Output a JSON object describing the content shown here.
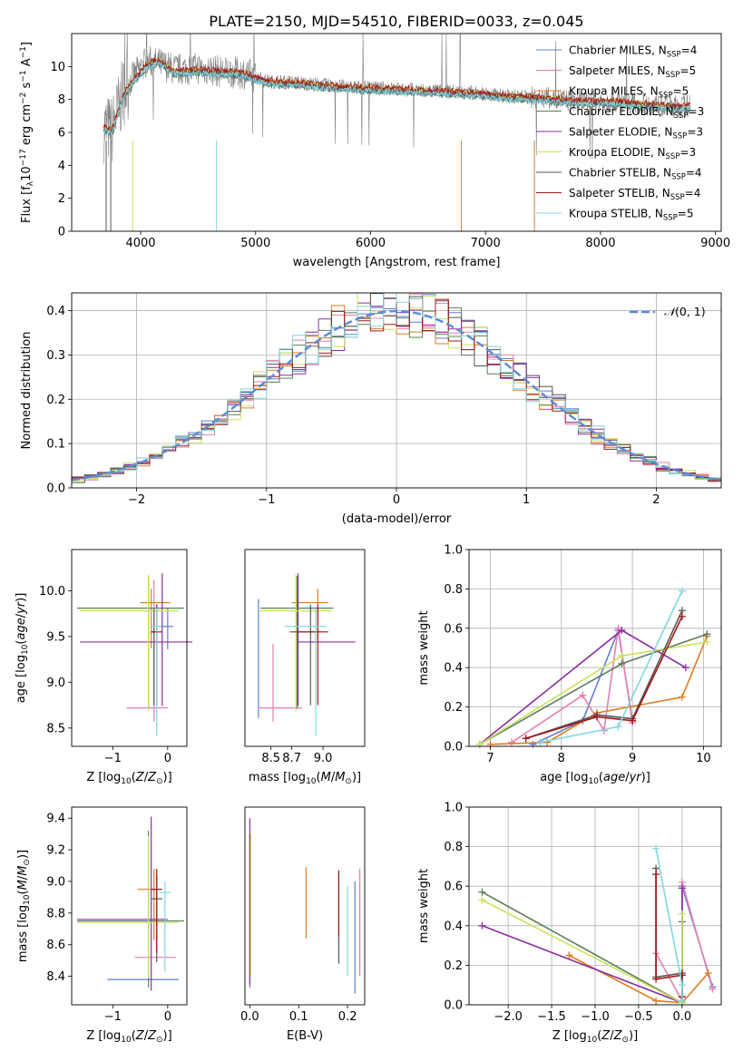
{
  "figure_title": "PLATE=2150, MJD=54510, FIBERID=0033, z=0.045",
  "colors": {
    "Chabrier MILES": "#5b7fd0",
    "Salpeter MILES": "#e57fb0",
    "Kroupa MILES": "#e07b20",
    "Chabrier ELODIE": "#5a7d5a",
    "Salpeter ELODIE": "#8b2ea0",
    "Kroupa ELODIE": "#c9e35a",
    "Chabrier STELIB": "#555555",
    "Salpeter STELIB": "#a01818",
    "Kroupa STELIB": "#80d8e0"
  },
  "chart_data": [
    {
      "type": "line",
      "panel": "spectrum",
      "xlabel": "wavelength [Angstrom, rest frame]",
      "ylabel": "Flux [f_λ10^-17 erg cm^-2 s^-1 A^-1]",
      "xlim": [
        3400,
        9050
      ],
      "ylim": [
        0,
        12
      ],
      "xticks": [
        4000,
        5000,
        6000,
        7000,
        8000,
        9000
      ],
      "yticks": [
        0,
        2,
        4,
        6,
        8,
        10
      ],
      "grid": false,
      "legend": "top-right",
      "legend_entries": [
        {
          "label": "Chabrier MILES",
          "nssp": "4"
        },
        {
          "label": "Salpeter MILES",
          "nssp": "5"
        },
        {
          "label": "Kroupa MILES",
          "nssp": "5"
        },
        {
          "label": "Chabrier ELODIE",
          "nssp": "3"
        },
        {
          "label": "Salpeter ELODIE",
          "nssp": "3"
        },
        {
          "label": "Kroupa ELODIE",
          "nssp": "3"
        },
        {
          "label": "Chabrier STELIB",
          "nssp": "4"
        },
        {
          "label": "Salpeter STELIB",
          "nssp": "4"
        },
        {
          "label": "Kroupa STELIB",
          "nssp": "5"
        }
      ],
      "data_trend": {
        "x": [
          3680,
          3750,
          3850,
          3950,
          4050,
          4150,
          4300,
          4500,
          4700,
          4900,
          5100,
          5400,
          5700,
          6000,
          6300,
          6600,
          6900,
          7200,
          7500,
          7800,
          8100,
          8400,
          8700
        ],
        "y": [
          6.3,
          6.1,
          8.5,
          9.5,
          10.3,
          10.2,
          9.8,
          9.9,
          9.7,
          9.6,
          9.1,
          9.0,
          8.8,
          8.7,
          8.6,
          8.5,
          8.4,
          8.2,
          8.1,
          7.9,
          7.9,
          7.7,
          7.6
        ]
      },
      "model_trend": {
        "x": [
          3680,
          3750,
          3850,
          3950,
          4050,
          4150,
          4300,
          4500,
          4700,
          4900,
          5100,
          5400,
          5700,
          6000,
          6300,
          6600,
          6900,
          7200,
          7500,
          7800,
          8100,
          8400,
          8700
        ],
        "y": [
          6.2,
          6.0,
          8.2,
          9.2,
          10.0,
          10.3,
          9.6,
          9.7,
          9.6,
          9.5,
          9.0,
          8.9,
          8.7,
          8.6,
          8.5,
          8.4,
          8.3,
          8.1,
          8.0,
          7.8,
          7.8,
          7.6,
          7.5
        ]
      }
    },
    {
      "type": "line",
      "panel": "residuals",
      "xlabel": "(data-model)/error",
      "ylabel": "Normed distribution",
      "xlim": [
        -2.5,
        2.5
      ],
      "ylim": [
        0,
        0.44
      ],
      "xticks": [
        -2,
        -1,
        0,
        1,
        2
      ],
      "yticks": [
        0.0,
        0.1,
        0.2,
        0.3,
        0.4
      ],
      "grid": true,
      "legend": "top-right",
      "reference_label": "N(0,1)",
      "reference_curve": "gaussian mean 0 sigma 1"
    },
    {
      "type": "scatter",
      "panel": "Z-age",
      "xlabel": "Z [log10(Z/Z⊙)]",
      "ylabel": "age [log10(age/yr)]",
      "xlim": [
        -1.75,
        0.35
      ],
      "ylim": [
        8.3,
        10.45
      ],
      "xticks": [
        -1,
        0
      ],
      "yticks": [
        8.5,
        9.0,
        9.5,
        10.0
      ],
      "points": [
        {
          "model": "Chabrier MILES",
          "x": 0.0,
          "y": 9.61,
          "xerr": [
            0.15,
            0.1
          ],
          "yerr": [
            0.25,
            0.2
          ]
        },
        {
          "model": "Salpeter MILES",
          "x": -0.25,
          "y": 8.72,
          "xerr": [
            0.5,
            0.25
          ],
          "yerr": [
            0.15,
            1.4
          ]
        },
        {
          "model": "Kroupa MILES",
          "x": -0.3,
          "y": 9.87,
          "xerr": [
            0.2,
            0.35
          ],
          "yerr": [
            0.5,
            0.15
          ]
        },
        {
          "model": "Chabrier ELODIE",
          "x": -0.35,
          "y": 9.81,
          "xerr": [
            1.3,
            0.65
          ],
          "yerr": [
            1.1,
            0.35
          ]
        },
        {
          "model": "Salpeter ELODIE",
          "x": -0.1,
          "y": 9.44,
          "xerr": [
            1.5,
            0.55
          ],
          "yerr": [
            0.7,
            0.75
          ]
        },
        {
          "model": "Kroupa ELODIE",
          "x": -0.35,
          "y": 9.78,
          "xerr": [
            1.25,
            0.55
          ],
          "yerr": [
            1.1,
            0.4
          ]
        },
        {
          "model": "Chabrier STELIB",
          "x": -0.25,
          "y": 9.55,
          "xerr": [
            0.05,
            0.05
          ],
          "yerr": [
            0.8,
            0.25
          ]
        },
        {
          "model": "Salpeter STELIB",
          "x": -0.2,
          "y": 9.55,
          "xerr": [
            0.1,
            0.1
          ],
          "yerr": [
            0.8,
            0.3
          ]
        },
        {
          "model": "Kroupa STELIB",
          "x": -0.2,
          "y": 9.61,
          "xerr": [
            0.1,
            0.1
          ],
          "yerr": [
            1.2,
            0.2
          ]
        }
      ]
    },
    {
      "type": "scatter",
      "panel": "mass-age",
      "xlabel": "mass [log10(M/M⊙)]",
      "ylabel": "",
      "xlim": [
        8.25,
        9.4
      ],
      "ylim": [
        8.3,
        10.45
      ],
      "xticks": [
        8.5,
        9.0
      ],
      "xtick_labels": [
        "8.5",
        "9.0"
      ],
      "extra_tick": "8.7",
      "points": [
        {
          "model": "Chabrier MILES",
          "x": 8.38,
          "y": 9.81,
          "xerr": [
            0.0,
            0.0
          ],
          "yerr": [
            1.2,
            0.1
          ]
        },
        {
          "model": "Salpeter MILES",
          "x": 8.52,
          "y": 8.72,
          "xerr": [
            0.13,
            0.28
          ],
          "yerr": [
            0.15,
            0.7
          ]
        },
        {
          "model": "Kroupa MILES",
          "x": 8.95,
          "y": 9.87,
          "xerr": [
            0.25,
            0.1
          ],
          "yerr": [
            0.4,
            0.15
          ]
        },
        {
          "model": "Chabrier ELODIE",
          "x": 8.75,
          "y": 9.81,
          "xerr": [
            0.35,
            0.35
          ],
          "yerr": [
            1.1,
            0.35
          ]
        },
        {
          "model": "Salpeter ELODIE",
          "x": 8.76,
          "y": 9.44,
          "xerr": [
            0.0,
            0.55
          ],
          "yerr": [
            0.7,
            0.75
          ]
        },
        {
          "model": "Kroupa ELODIE",
          "x": 8.74,
          "y": 9.78,
          "xerr": [
            0.35,
            0.35
          ],
          "yerr": [
            1.1,
            0.4
          ]
        },
        {
          "model": "Chabrier STELIB",
          "x": 8.88,
          "y": 9.55,
          "xerr": [
            0.2,
            0.1
          ],
          "yerr": [
            0.8,
            0.3
          ]
        },
        {
          "model": "Salpeter STELIB",
          "x": 8.95,
          "y": 9.55,
          "xerr": [
            0.2,
            0.1
          ],
          "yerr": [
            0.8,
            0.3
          ]
        },
        {
          "model": "Kroupa STELIB",
          "x": 8.93,
          "y": 9.61,
          "xerr": [
            0.3,
            0.1
          ],
          "yerr": [
            1.2,
            0.2
          ]
        }
      ]
    },
    {
      "type": "line",
      "panel": "age-weight",
      "xlabel": "age [log10(age/yr)]",
      "ylabel": "mass weight",
      "xlim": [
        6.7,
        10.25
      ],
      "ylim": [
        0,
        1.0
      ],
      "xticks": [
        7,
        8,
        9,
        10
      ],
      "yticks": [
        0.0,
        0.2,
        0.4,
        0.6,
        0.8,
        1.0
      ],
      "grid": true,
      "series": [
        {
          "model": "Chabrier MILES",
          "x": [
            7.6,
            8.3,
            8.8,
            9.0
          ],
          "y": [
            0.01,
            0.13,
            0.59,
            0.13
          ]
        },
        {
          "model": "Salpeter MILES",
          "x": [
            7.3,
            8.3,
            8.6,
            8.8,
            9.0
          ],
          "y": [
            0.02,
            0.26,
            0.08,
            0.6,
            0.12
          ]
        },
        {
          "model": "Kroupa MILES",
          "x": [
            7.0,
            7.8,
            8.5,
            9.7,
            10.05
          ],
          "y": [
            0.01,
            0.02,
            0.17,
            0.25,
            0.56
          ]
        },
        {
          "model": "Chabrier ELODIE",
          "x": [
            6.85,
            8.85,
            10.05
          ],
          "y": [
            0.01,
            0.42,
            0.57
          ]
        },
        {
          "model": "Salpeter ELODIE",
          "x": [
            6.85,
            8.85,
            9.75
          ],
          "y": [
            0.01,
            0.59,
            0.4
          ]
        },
        {
          "model": "Kroupa ELODIE",
          "x": [
            6.85,
            8.85,
            10.05
          ],
          "y": [
            0.01,
            0.46,
            0.53
          ]
        },
        {
          "model": "Chabrier STELIB",
          "x": [
            7.5,
            8.5,
            9.0,
            9.7
          ],
          "y": [
            0.04,
            0.16,
            0.14,
            0.69
          ]
        },
        {
          "model": "Salpeter STELIB",
          "x": [
            7.5,
            8.5,
            9.0,
            9.7
          ],
          "y": [
            0.04,
            0.15,
            0.13,
            0.66
          ]
        },
        {
          "model": "Kroupa STELIB",
          "x": [
            7.7,
            8.8,
            9.7
          ],
          "y": [
            0.02,
            0.1,
            0.79
          ]
        }
      ]
    },
    {
      "type": "scatter",
      "panel": "Z-mass",
      "xlabel": "Z [log10(Z/Z⊙)]",
      "ylabel": "mass [log10(M/M⊙)]",
      "xlim": [
        -1.75,
        0.35
      ],
      "ylim": [
        8.22,
        9.47
      ],
      "xticks": [
        -1,
        0
      ],
      "yticks": [
        8.4,
        8.6,
        8.8,
        9.0,
        9.2,
        9.4
      ],
      "points": [
        {
          "model": "Chabrier MILES",
          "x": -0.35,
          "y": 8.38,
          "xerr": [
            0.75,
            0.55
          ],
          "yerr": [
            0.0,
            0.0
          ]
        },
        {
          "model": "Salpeter MILES",
          "x": -0.25,
          "y": 8.52,
          "xerr": [
            0.35,
            0.4
          ],
          "yerr": [
            0.0,
            0.0
          ]
        },
        {
          "model": "Kroupa MILES",
          "x": -0.25,
          "y": 8.95,
          "xerr": [
            0.3,
            0.1
          ],
          "yerr": [
            0.32,
            0.13
          ]
        },
        {
          "model": "Chabrier ELODIE",
          "x": -0.35,
          "y": 8.75,
          "xerr": [
            1.3,
            0.65
          ],
          "yerr": [
            0.42,
            0.57
          ]
        },
        {
          "model": "Salpeter ELODIE",
          "x": -0.3,
          "y": 8.76,
          "xerr": [
            1.35,
            0.3
          ],
          "yerr": [
            0.45,
            0.65
          ]
        },
        {
          "model": "Kroupa ELODIE",
          "x": -0.35,
          "y": 8.74,
          "xerr": [
            1.3,
            0.55
          ],
          "yerr": [
            0.35,
            0.55
          ]
        },
        {
          "model": "Chabrier STELIB",
          "x": -0.2,
          "y": 8.89,
          "xerr": [
            0.1,
            0.1
          ],
          "yerr": [
            0.4,
            0.15
          ]
        },
        {
          "model": "Salpeter STELIB",
          "x": -0.2,
          "y": 8.95,
          "xerr": [
            0.1,
            0.1
          ],
          "yerr": [
            0.4,
            0.13
          ]
        },
        {
          "model": "Kroupa STELIB",
          "x": -0.05,
          "y": 8.93,
          "xerr": [
            0.1,
            0.1
          ],
          "yerr": [
            0.5,
            0.07
          ]
        }
      ]
    },
    {
      "type": "scatter",
      "panel": "EBV-mass",
      "xlabel": "E(B-V)",
      "ylabel": "",
      "xlim": [
        -0.01,
        0.235
      ],
      "ylim": [
        8.22,
        9.47
      ],
      "xticks": [
        0.0,
        0.1,
        0.2
      ],
      "points": [
        {
          "model": "Chabrier MILES",
          "x": 0.215,
          "y": 8.65,
          "xerr": [
            0,
            0
          ],
          "yerr": [
            0.36,
            0.35
          ]
        },
        {
          "model": "Salpeter MILES",
          "x": 0.225,
          "y": 8.6,
          "xerr": [
            0,
            0
          ],
          "yerr": [
            0.2,
            0.48
          ]
        },
        {
          "model": "Kroupa MILES",
          "x": 0.115,
          "y": 8.86,
          "xerr": [
            0,
            0
          ],
          "yerr": [
            0.22,
            0.23
          ]
        },
        {
          "model": "Chabrier ELODIE",
          "x": 0.0,
          "y": 8.75,
          "xerr": [
            0,
            0
          ],
          "yerr": [
            0.42,
            0.55
          ]
        },
        {
          "model": "Salpeter ELODIE",
          "x": 0.0,
          "y": 8.85,
          "xerr": [
            0,
            0
          ],
          "yerr": [
            0.5,
            0.55
          ]
        },
        {
          "model": "Kroupa ELODIE",
          "x": 0.002,
          "y": 8.75,
          "xerr": [
            0,
            0
          ],
          "yerr": [
            0.35,
            0.55
          ]
        },
        {
          "model": "Chabrier STELIB",
          "x": 0.182,
          "y": 8.8,
          "xerr": [
            0,
            0
          ],
          "yerr": [
            0.32,
            0.27
          ]
        },
        {
          "model": "Salpeter STELIB",
          "x": 0.182,
          "y": 8.9,
          "xerr": [
            0,
            0
          ],
          "yerr": [
            0.25,
            0.17
          ]
        },
        {
          "model": "Kroupa STELIB",
          "x": 0.2,
          "y": 8.7,
          "xerr": [
            0,
            0
          ],
          "yerr": [
            0.3,
            0.27
          ]
        }
      ]
    },
    {
      "type": "line",
      "panel": "Z-weight",
      "xlabel": "Z [log10(Z/Z⊙)]",
      "ylabel": "mass weight",
      "xlim": [
        -2.45,
        0.45
      ],
      "ylim": [
        0,
        1.0
      ],
      "xticks": [
        -2.0,
        -1.5,
        -1.0,
        -0.5,
        0.0
      ],
      "yticks": [
        0.0,
        0.2,
        0.4,
        0.6,
        0.8,
        1.0
      ],
      "grid": true,
      "series": [
        {
          "model": "Chabrier MILES",
          "x": [
            0.0,
            0.0,
            0.35
          ],
          "y": [
            0.01,
            0.6,
            0.09
          ]
        },
        {
          "model": "Salpeter MILES",
          "x": [
            -0.3,
            0.0,
            0.0,
            0.35
          ],
          "y": [
            0.26,
            0.02,
            0.62,
            0.08
          ]
        },
        {
          "model": "Kroupa MILES",
          "x": [
            -1.3,
            -0.3,
            0.0,
            0.3
          ],
          "y": [
            0.25,
            0.02,
            0.01,
            0.16
          ]
        },
        {
          "model": "Chabrier ELODIE",
          "x": [
            -2.3,
            0.0,
            0.0
          ],
          "y": [
            0.57,
            0.01,
            0.42
          ]
        },
        {
          "model": "Salpeter ELODIE",
          "x": [
            -2.3,
            0.0,
            0.0
          ],
          "y": [
            0.4,
            0.01,
            0.59
          ]
        },
        {
          "model": "Kroupa ELODIE",
          "x": [
            -2.3,
            0.0,
            0.0
          ],
          "y": [
            0.53,
            0.01,
            0.46
          ]
        },
        {
          "model": "Chabrier STELIB",
          "x": [
            -0.3,
            -0.3,
            0.0,
            0.0
          ],
          "y": [
            0.69,
            0.14,
            0.16,
            0.04
          ]
        },
        {
          "model": "Salpeter STELIB",
          "x": [
            -0.3,
            -0.3,
            0.0,
            0.0
          ],
          "y": [
            0.66,
            0.13,
            0.15,
            0.04
          ]
        },
        {
          "model": "Kroupa STELIB",
          "x": [
            -0.3,
            0.0,
            0.0
          ],
          "y": [
            0.79,
            0.1,
            0.02
          ]
        }
      ]
    }
  ]
}
